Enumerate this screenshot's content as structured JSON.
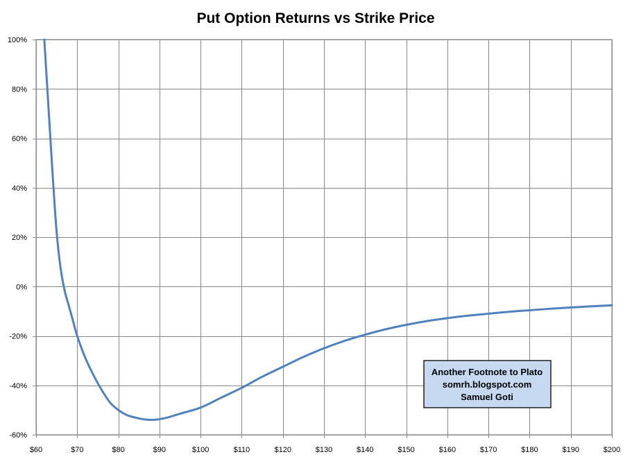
{
  "chart_data": {
    "type": "line",
    "title": "Put Option Returns vs Strike Price",
    "xlabel": "",
    "ylabel": "",
    "xlim": [
      60,
      200
    ],
    "ylim": [
      -60,
      100
    ],
    "x_ticks": [
      60,
      70,
      80,
      90,
      100,
      110,
      120,
      130,
      140,
      150,
      160,
      170,
      180,
      190,
      200
    ],
    "x_tick_labels": [
      "$60",
      "$70",
      "$80",
      "$90",
      "$100",
      "$110",
      "$120",
      "$130",
      "$140",
      "$150",
      "$160",
      "$170",
      "$180",
      "$190",
      "$200"
    ],
    "y_ticks": [
      -60,
      -40,
      -20,
      0,
      20,
      40,
      60,
      80,
      100
    ],
    "y_tick_labels": [
      "-60%",
      "-40%",
      "-20%",
      "0%",
      "20%",
      "40%",
      "60%",
      "80%",
      "100%"
    ],
    "grid": true,
    "legend": "none",
    "series": [
      {
        "name": "Put Option Returns",
        "color": "#4f81bd",
        "x": [
          62,
          63,
          64,
          65,
          66,
          67,
          68,
          69,
          70,
          72,
          74,
          76,
          78,
          80,
          82,
          84,
          86,
          88,
          90,
          92,
          95,
          100,
          105,
          110,
          115,
          120,
          125,
          130,
          135,
          140,
          145,
          150,
          155,
          160,
          165,
          170,
          175,
          180,
          185,
          190,
          195,
          200
        ],
        "values": [
          100,
          73,
          46,
          22,
          7,
          -2,
          -8,
          -14,
          -20,
          -29,
          -36,
          -42,
          -47,
          -50,
          -52,
          -53,
          -53.7,
          -54,
          -53.7,
          -53,
          -51.5,
          -49,
          -45,
          -41,
          -36.5,
          -32.5,
          -28.5,
          -25,
          -22,
          -19.5,
          -17.3,
          -15.5,
          -14,
          -12.8,
          -11.8,
          -11,
          -10.2,
          -9.6,
          -9,
          -8.5,
          -8,
          -7.6
        ]
      }
    ],
    "annotations": [
      {
        "lines": [
          "Another Footnote to Plato",
          "somrh.blogspot.com",
          "Samuel Goti"
        ],
        "background": "#c6d9f1",
        "border": "#000000",
        "position": "bottom-right"
      }
    ]
  }
}
